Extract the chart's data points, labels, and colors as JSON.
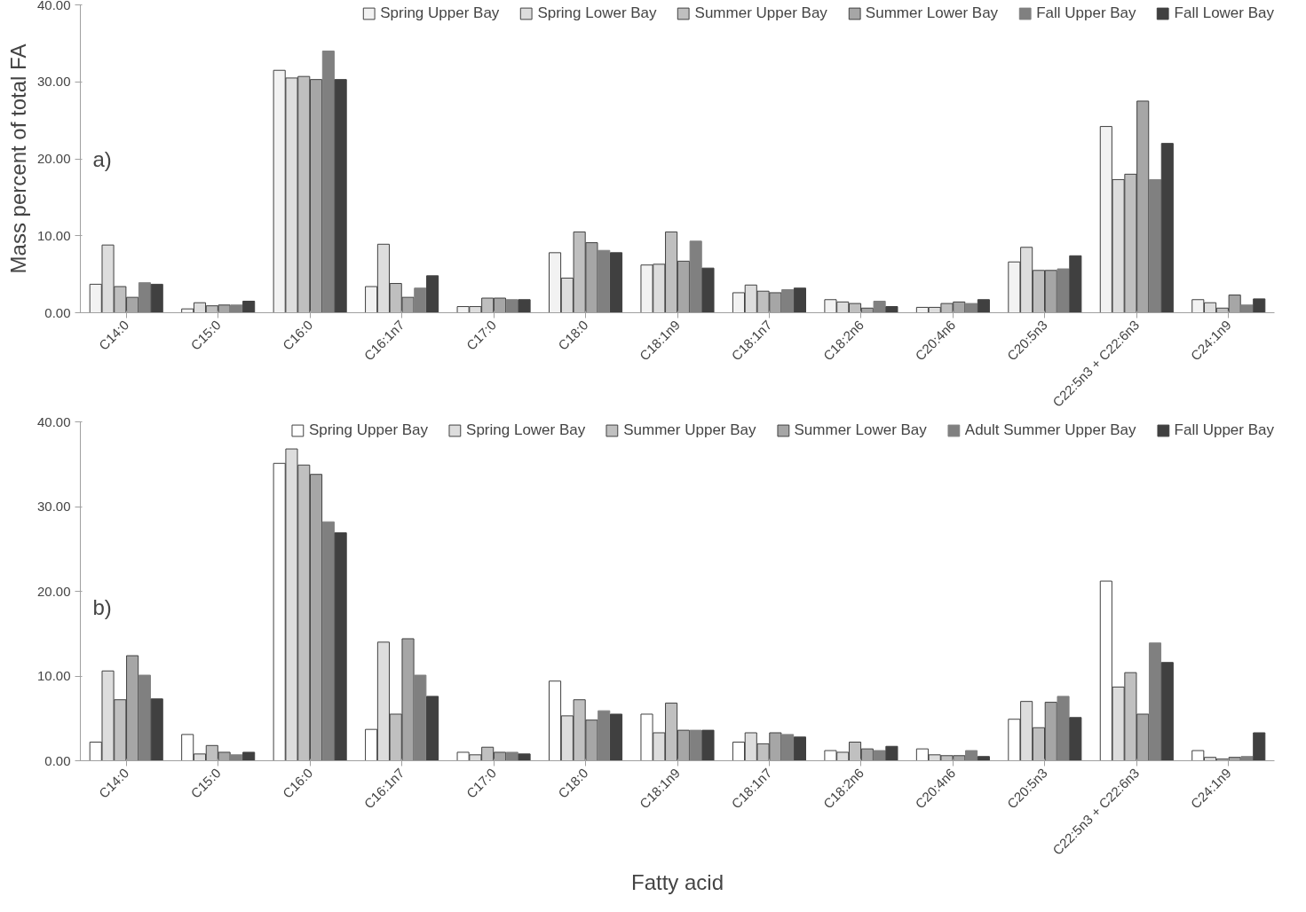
{
  "chart_data": [
    {
      "type": "bar",
      "ylabel": "Mass percent of total FA",
      "annotations": [
        "a)"
      ],
      "categories": [
        "C14:0",
        "C15:0",
        "C16:0",
        "C16:1n7",
        "C17:0",
        "C18:0",
        "C18:1n9",
        "C18:1n7",
        "C18:2n6",
        "C20:4n6",
        "C20:5n3",
        "C22:5n3 + C22:6n3",
        "C24:1n9"
      ],
      "ylim": [
        0,
        40
      ],
      "yticks": [
        {
          "value": 0,
          "label": "0.00"
        },
        {
          "value": 10,
          "label": "10.00"
        },
        {
          "value": 20,
          "label": "20.00"
        },
        {
          "value": 30,
          "label": "30.00"
        },
        {
          "value": 40,
          "label": "40.00"
        }
      ],
      "grid": false,
      "legend": "top",
      "series": [
        {
          "name": "Spring Upper Bay",
          "color": "#f2f2f2",
          "values": [
            3.7,
            0.5,
            31.5,
            3.4,
            0.8,
            7.8,
            6.2,
            2.6,
            1.7,
            0.7,
            6.6,
            24.2,
            1.7
          ]
        },
        {
          "name": "Spring Lower Bay",
          "color": "#dddddd",
          "values": [
            8.8,
            1.3,
            30.5,
            8.9,
            0.8,
            4.5,
            6.3,
            3.6,
            1.4,
            0.7,
            8.5,
            17.3,
            1.3
          ]
        },
        {
          "name": "Summer Upper Bay",
          "color": "#bfbfbf",
          "values": [
            3.4,
            0.9,
            30.7,
            3.8,
            1.9,
            10.5,
            10.5,
            2.8,
            1.2,
            1.2,
            5.5,
            18.0,
            0.6
          ]
        },
        {
          "name": "Summer Lower Bay",
          "color": "#a6a6a6",
          "values": [
            2.0,
            1.0,
            30.3,
            2.0,
            1.9,
            9.1,
            6.7,
            2.6,
            0.6,
            1.4,
            5.5,
            27.5,
            2.3
          ]
        },
        {
          "name": "Fall Upper Bay",
          "color": "#808080",
          "values": [
            3.9,
            1.0,
            34.0,
            3.2,
            1.7,
            8.1,
            9.3,
            3.0,
            1.5,
            1.2,
            5.7,
            17.3,
            1.0
          ]
        },
        {
          "name": "Fall Lower Bay",
          "color": "#404040",
          "values": [
            3.7,
            1.5,
            30.3,
            4.8,
            1.7,
            7.8,
            5.8,
            3.2,
            0.8,
            1.7,
            7.4,
            22.0,
            1.8
          ]
        }
      ]
    },
    {
      "type": "bar",
      "xlabel": "Fatty acid",
      "annotations": [
        "b)"
      ],
      "categories": [
        "C14:0",
        "C15:0",
        "C16:0",
        "C16:1n7",
        "C17:0",
        "C18:0",
        "C18:1n9",
        "C18:1n7",
        "C18:2n6",
        "C20:4n6",
        "C20:5n3",
        "C22:5n3 + C22:6n3",
        "C24:1n9"
      ],
      "ylim": [
        0,
        40
      ],
      "yticks": [
        {
          "value": 0,
          "label": "0.00"
        },
        {
          "value": 10,
          "label": "10.00"
        },
        {
          "value": 20,
          "label": "20.00"
        },
        {
          "value": 30,
          "label": "30.00"
        },
        {
          "value": 40,
          "label": "40.00"
        }
      ],
      "grid": false,
      "legend": "top",
      "series": [
        {
          "name": "Spring Upper Bay",
          "color": "#ffffff",
          "values": [
            2.2,
            3.1,
            35.1,
            3.7,
            1.0,
            9.4,
            5.5,
            2.2,
            1.2,
            1.4,
            4.9,
            21.2,
            1.2
          ]
        },
        {
          "name": "Spring Lower Bay",
          "color": "#dddddd",
          "values": [
            10.6,
            0.8,
            36.8,
            14.0,
            0.7,
            5.3,
            3.3,
            3.3,
            1.0,
            0.7,
            7.0,
            8.7,
            0.4
          ]
        },
        {
          "name": "Summer Upper Bay",
          "color": "#c0c0c0",
          "values": [
            7.2,
            1.8,
            34.9,
            5.5,
            1.6,
            7.2,
            6.8,
            2.0,
            2.2,
            0.6,
            3.9,
            10.4,
            0.2
          ]
        },
        {
          "name": "Summer Lower Bay",
          "color": "#a6a6a6",
          "values": [
            12.4,
            1.0,
            33.8,
            14.4,
            1.0,
            4.8,
            3.6,
            3.3,
            1.4,
            0.6,
            6.9,
            5.5,
            0.4
          ]
        },
        {
          "name": "Adult Summer Upper Bay",
          "color": "#808080",
          "values": [
            10.1,
            0.7,
            28.2,
            10.1,
            1.0,
            5.9,
            3.6,
            3.1,
            1.2,
            1.2,
            7.6,
            13.9,
            0.5
          ]
        },
        {
          "name": "Fall Upper Bay",
          "color": "#404040",
          "values": [
            7.3,
            1.0,
            26.9,
            7.6,
            0.8,
            5.5,
            3.6,
            2.8,
            1.7,
            0.5,
            5.1,
            11.6,
            3.3
          ]
        }
      ]
    }
  ]
}
